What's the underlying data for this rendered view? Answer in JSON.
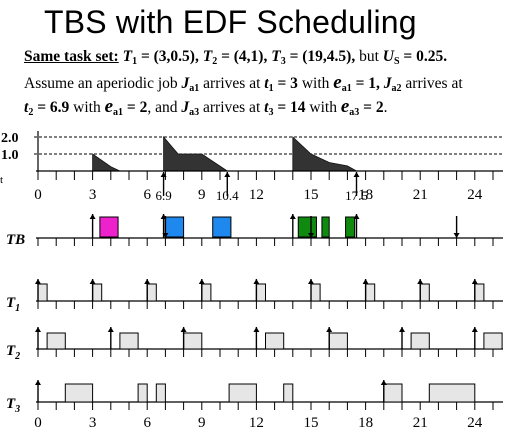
{
  "title": "TBS with EDF Scheduling",
  "description": {
    "task_set_label": "Same task set:",
    "t1_name": "T",
    "t1_sub": "1",
    "t1_val": "= (3,0.5),",
    "t2_name": "T",
    "t2_sub": "2",
    "t2_val": "= (4,1),",
    "t3_name": "T",
    "t3_sub": "3",
    "t3_val": "= (19,4.5),",
    "but": "but",
    "us_name": "U",
    "us_sub": "S",
    "us_val": "= 0.25.",
    "l2_a": "Assume an aperiodic job",
    "j1_name": "J",
    "j1_sub": "a1",
    "arrives_at": "arrives at",
    "t_1_name": "t",
    "t_1_sub": "1",
    "t_1_val": "= 3",
    "with": "with",
    "e1_name": "e",
    "e1_sub": "a1",
    "e1_val": "= 1,",
    "j2_name": "J",
    "j2_sub": "a2",
    "arrives_at2": "arrives at",
    "t_2_name": "t",
    "t_2_sub": "2",
    "t_2_val": "= 6.9",
    "with2": "with",
    "e2_name": "e",
    "e2_sub": "a1",
    "e2_val": "= 2",
    "and": ", and",
    "j3_name": "J",
    "j3_sub": "a3",
    "arrives_at3": "arrives at",
    "t_3_name": "t",
    "t_3_sub": "3",
    "t_3_val": "= 14",
    "with3": "with",
    "e3_name": "e",
    "e3_sub": "a3",
    "e3_val": "= 2",
    "end": "."
  },
  "diagram": {
    "x_range": [
      0,
      25
    ],
    "top_axis_ticks": [
      "0",
      "3",
      "6",
      "9",
      "12",
      "15",
      "18",
      "21",
      "24"
    ],
    "top_axis_extra_ticks": [
      "6.9",
      "10.4",
      "17.5"
    ],
    "bottom_axis_ticks": [
      "0",
      "3",
      "6",
      "9",
      "12",
      "15",
      "18",
      "21",
      "24"
    ],
    "budget_labels": [
      "2.0",
      "1.0"
    ],
    "budget_left_mark": "t",
    "row_labels": [
      "TB",
      "T1",
      "T2",
      "T3"
    ],
    "budget_series": [
      {
        "points": [
          [
            3,
            0
          ],
          [
            3,
            1
          ],
          [
            4,
            0.25
          ],
          [
            4.5,
            0
          ]
        ]
      },
      {
        "points": [
          [
            6.9,
            0
          ],
          [
            6.9,
            2
          ],
          [
            7.7,
            1
          ],
          [
            9,
            1
          ],
          [
            10.4,
            0
          ]
        ]
      },
      {
        "points": [
          [
            14,
            0
          ],
          [
            14,
            2
          ],
          [
            15,
            1
          ],
          [
            16,
            0.5
          ],
          [
            17,
            0.3
          ],
          [
            17.5,
            0
          ]
        ]
      }
    ],
    "tb_jobs": [
      {
        "start": 3.4,
        "end": 4.4,
        "color": "#ee22cc"
      },
      {
        "start": 7,
        "end": 8,
        "color": "#1e88ee"
      },
      {
        "start": 9.6,
        "end": 10.6,
        "color": "#1e88ee"
      },
      {
        "start": 14.3,
        "end": 15.3,
        "color": "#0f8a0f"
      },
      {
        "start": 15.6,
        "end": 16,
        "color": "#0f8a0f"
      },
      {
        "start": 16.9,
        "end": 17.4,
        "color": "#0f8a0f"
      }
    ],
    "tb_up_arrows": [
      3,
      6.9,
      14,
      17.5
    ],
    "tb_down_arrows": [
      7,
      15,
      23
    ],
    "t1_jobs": [
      [
        0,
        0.5
      ],
      [
        3,
        3.5
      ],
      [
        6,
        6.5
      ],
      [
        9,
        9.5
      ],
      [
        12,
        12.5
      ],
      [
        15,
        15.5
      ],
      [
        18,
        18.5
      ],
      [
        21,
        21.5
      ],
      [
        24,
        24.5
      ]
    ],
    "t1_arrows": [
      0,
      3,
      6,
      9,
      12,
      15,
      18,
      21,
      24
    ],
    "t2_jobs": [
      [
        0.5,
        1.5
      ],
      [
        4.5,
        5.5
      ],
      [
        8,
        9
      ],
      [
        12.5,
        13.5
      ],
      [
        16,
        17
      ],
      [
        20.5,
        21.5
      ],
      [
        24.5,
        25.5
      ]
    ],
    "t2_arrows": [
      0,
      4,
      8,
      12,
      16,
      20,
      24
    ],
    "t3_jobs": [
      [
        1.5,
        3
      ],
      [
        5.5,
        6
      ],
      [
        6.5,
        7
      ],
      [
        10.5,
        12
      ],
      [
        13.5,
        14
      ],
      [
        19,
        20
      ],
      [
        21.5,
        24
      ]
    ],
    "t3_arrows": [
      0,
      19
    ],
    "colors": {
      "job_gray": "#e6e6e6",
      "budget_fill": "#333333"
    }
  }
}
